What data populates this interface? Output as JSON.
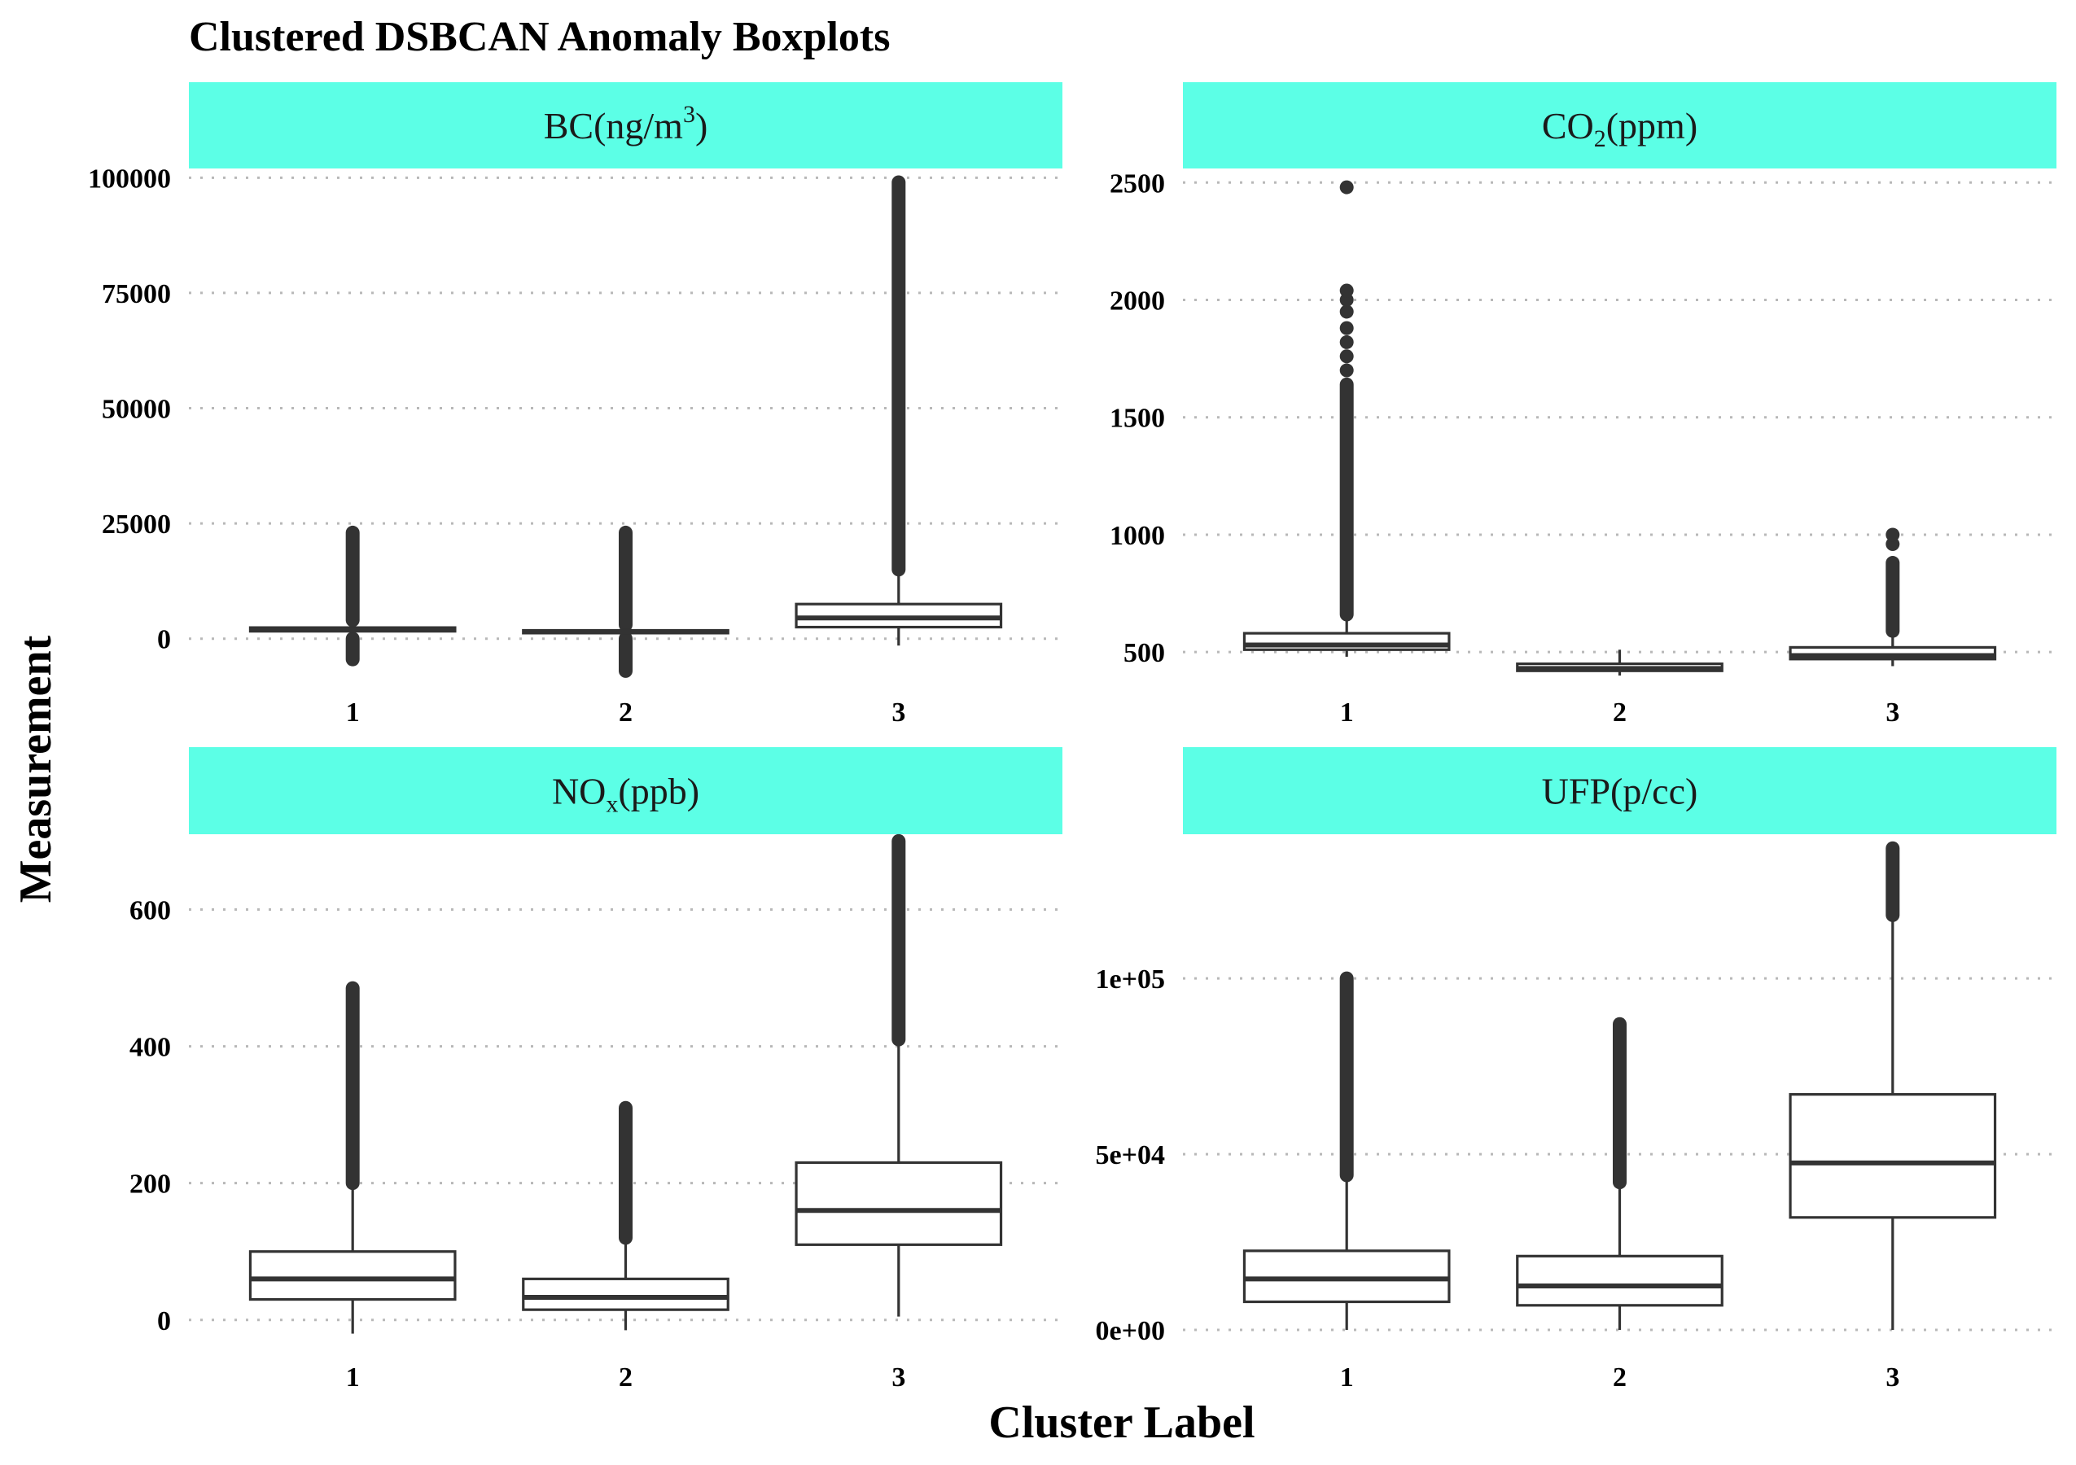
{
  "title": "Clustered DSBCAN Anomaly Boxplots",
  "strip_color": "#5cffe6",
  "chart_data": [
    {
      "type": "boxplot",
      "panel_label": "BC(ng/m³)",
      "label_parts": [
        [
          "BC(ng/m",
          "n"
        ],
        [
          "3",
          "sup"
        ],
        [
          ")",
          "n"
        ]
      ],
      "xlabel": "Cluster Label",
      "ylabel": "Measurement",
      "categories": [
        "1",
        "2",
        "3"
      ],
      "ylim": [
        -8000,
        102000
      ],
      "yticks": [
        0,
        25000,
        50000,
        75000,
        100000
      ],
      "ytick_labels": [
        "0",
        "25000",
        "50000",
        "75000",
        "100000"
      ],
      "boxes": [
        {
          "category": "1",
          "lower_whisker": 0,
          "q1": 1600,
          "median": 2000,
          "q3": 2400,
          "upper_whisker": 4000,
          "outliers_low": [
            -4500,
            0
          ],
          "outliers_high": [
            4000,
            23000
          ]
        },
        {
          "category": "2",
          "lower_whisker": 0,
          "q1": 1200,
          "median": 1500,
          "q3": 1800,
          "upper_whisker": 3000,
          "outliers_low": [
            -7000,
            0
          ],
          "outliers_high": [
            3000,
            23000
          ]
        },
        {
          "category": "3",
          "lower_whisker": -1500,
          "q1": 2500,
          "median": 4500,
          "q3": 7500,
          "upper_whisker": 15000,
          "outliers_low": [],
          "outliers_high": [
            15000,
            99000
          ]
        }
      ]
    },
    {
      "type": "boxplot",
      "panel_label": "CO₂(ppm)",
      "label_parts": [
        [
          "CO",
          "n"
        ],
        [
          "2",
          "sub"
        ],
        [
          "(ppm)",
          "n"
        ]
      ],
      "xlabel": "Cluster Label",
      "ylabel": "Measurement",
      "categories": [
        "1",
        "2",
        "3"
      ],
      "ylim": [
        400,
        2560
      ],
      "yticks": [
        500,
        1000,
        1500,
        2000,
        2500
      ],
      "ytick_labels": [
        "500",
        "1000",
        "1500",
        "2000",
        "2500"
      ],
      "boxes": [
        {
          "category": "1",
          "lower_whisker": 480,
          "q1": 510,
          "median": 530,
          "q3": 580,
          "upper_whisker": 660,
          "outliers_low": [],
          "outliers_high": [
            660,
            1640
          ],
          "outliers_isolated": [
            1700,
            1760,
            1820,
            1880,
            1950,
            2000,
            2040,
            2480
          ]
        },
        {
          "category": "2",
          "lower_whisker": 400,
          "q1": 420,
          "median": 430,
          "q3": 450,
          "upper_whisker": 510,
          "outliers_low": [],
          "outliers_high": []
        },
        {
          "category": "3",
          "lower_whisker": 440,
          "q1": 470,
          "median": 485,
          "q3": 520,
          "upper_whisker": 590,
          "outliers_low": [],
          "outliers_high": [
            590,
            880
          ],
          "outliers_isolated": [
            960,
            1000
          ]
        }
      ]
    },
    {
      "type": "boxplot",
      "panel_label": "NOₓ(ppb)",
      "label_parts": [
        [
          "NO",
          "n"
        ],
        [
          "x",
          "sub"
        ],
        [
          "(ppb)",
          "n"
        ]
      ],
      "xlabel": "Cluster Label",
      "ylabel": "Measurement",
      "categories": [
        "1",
        "2",
        "3"
      ],
      "ylim": [
        -30,
        710
      ],
      "yticks": [
        0,
        200,
        400,
        600
      ],
      "ytick_labels": [
        "0",
        "200",
        "400",
        "600"
      ],
      "boxes": [
        {
          "category": "1",
          "lower_whisker": -20,
          "q1": 30,
          "median": 60,
          "q3": 100,
          "upper_whisker": 200,
          "outliers_low": [],
          "outliers_high": [
            200,
            485
          ]
        },
        {
          "category": "2",
          "lower_whisker": -15,
          "q1": 15,
          "median": 33,
          "q3": 60,
          "upper_whisker": 120,
          "outliers_low": [],
          "outliers_high": [
            120,
            310
          ]
        },
        {
          "category": "3",
          "lower_whisker": 5,
          "q1": 110,
          "median": 160,
          "q3": 230,
          "upper_whisker": 410,
          "outliers_low": [],
          "outliers_high": [
            410,
            700
          ]
        }
      ]
    },
    {
      "type": "boxplot",
      "panel_label": "UFP(p/cc)",
      "label_parts": [
        [
          "UFP(p/cc)",
          "n"
        ]
      ],
      "xlabel": "Cluster Label",
      "ylabel": "Measurement",
      "categories": [
        "1",
        "2",
        "3"
      ],
      "ylim": [
        -3000,
        141000
      ],
      "yticks": [
        0,
        50000,
        100000
      ],
      "ytick_labels": [
        "0e+00",
        "5e+04",
        "1e+05"
      ],
      "boxes": [
        {
          "category": "1",
          "lower_whisker": 0,
          "q1": 8000,
          "median": 14500,
          "q3": 22500,
          "upper_whisker": 44000,
          "outliers_low": [],
          "outliers_high": [
            44000,
            100000
          ]
        },
        {
          "category": "2",
          "lower_whisker": 0,
          "q1": 7000,
          "median": 12500,
          "q3": 21000,
          "upper_whisker": 42000,
          "outliers_low": [],
          "outliers_high": [
            42000,
            87000
          ]
        },
        {
          "category": "3",
          "lower_whisker": 0,
          "q1": 32000,
          "median": 47500,
          "q3": 67000,
          "upper_whisker": 118000,
          "outliers_low": [],
          "outliers_high": [
            118000,
            137000
          ]
        }
      ]
    }
  ]
}
